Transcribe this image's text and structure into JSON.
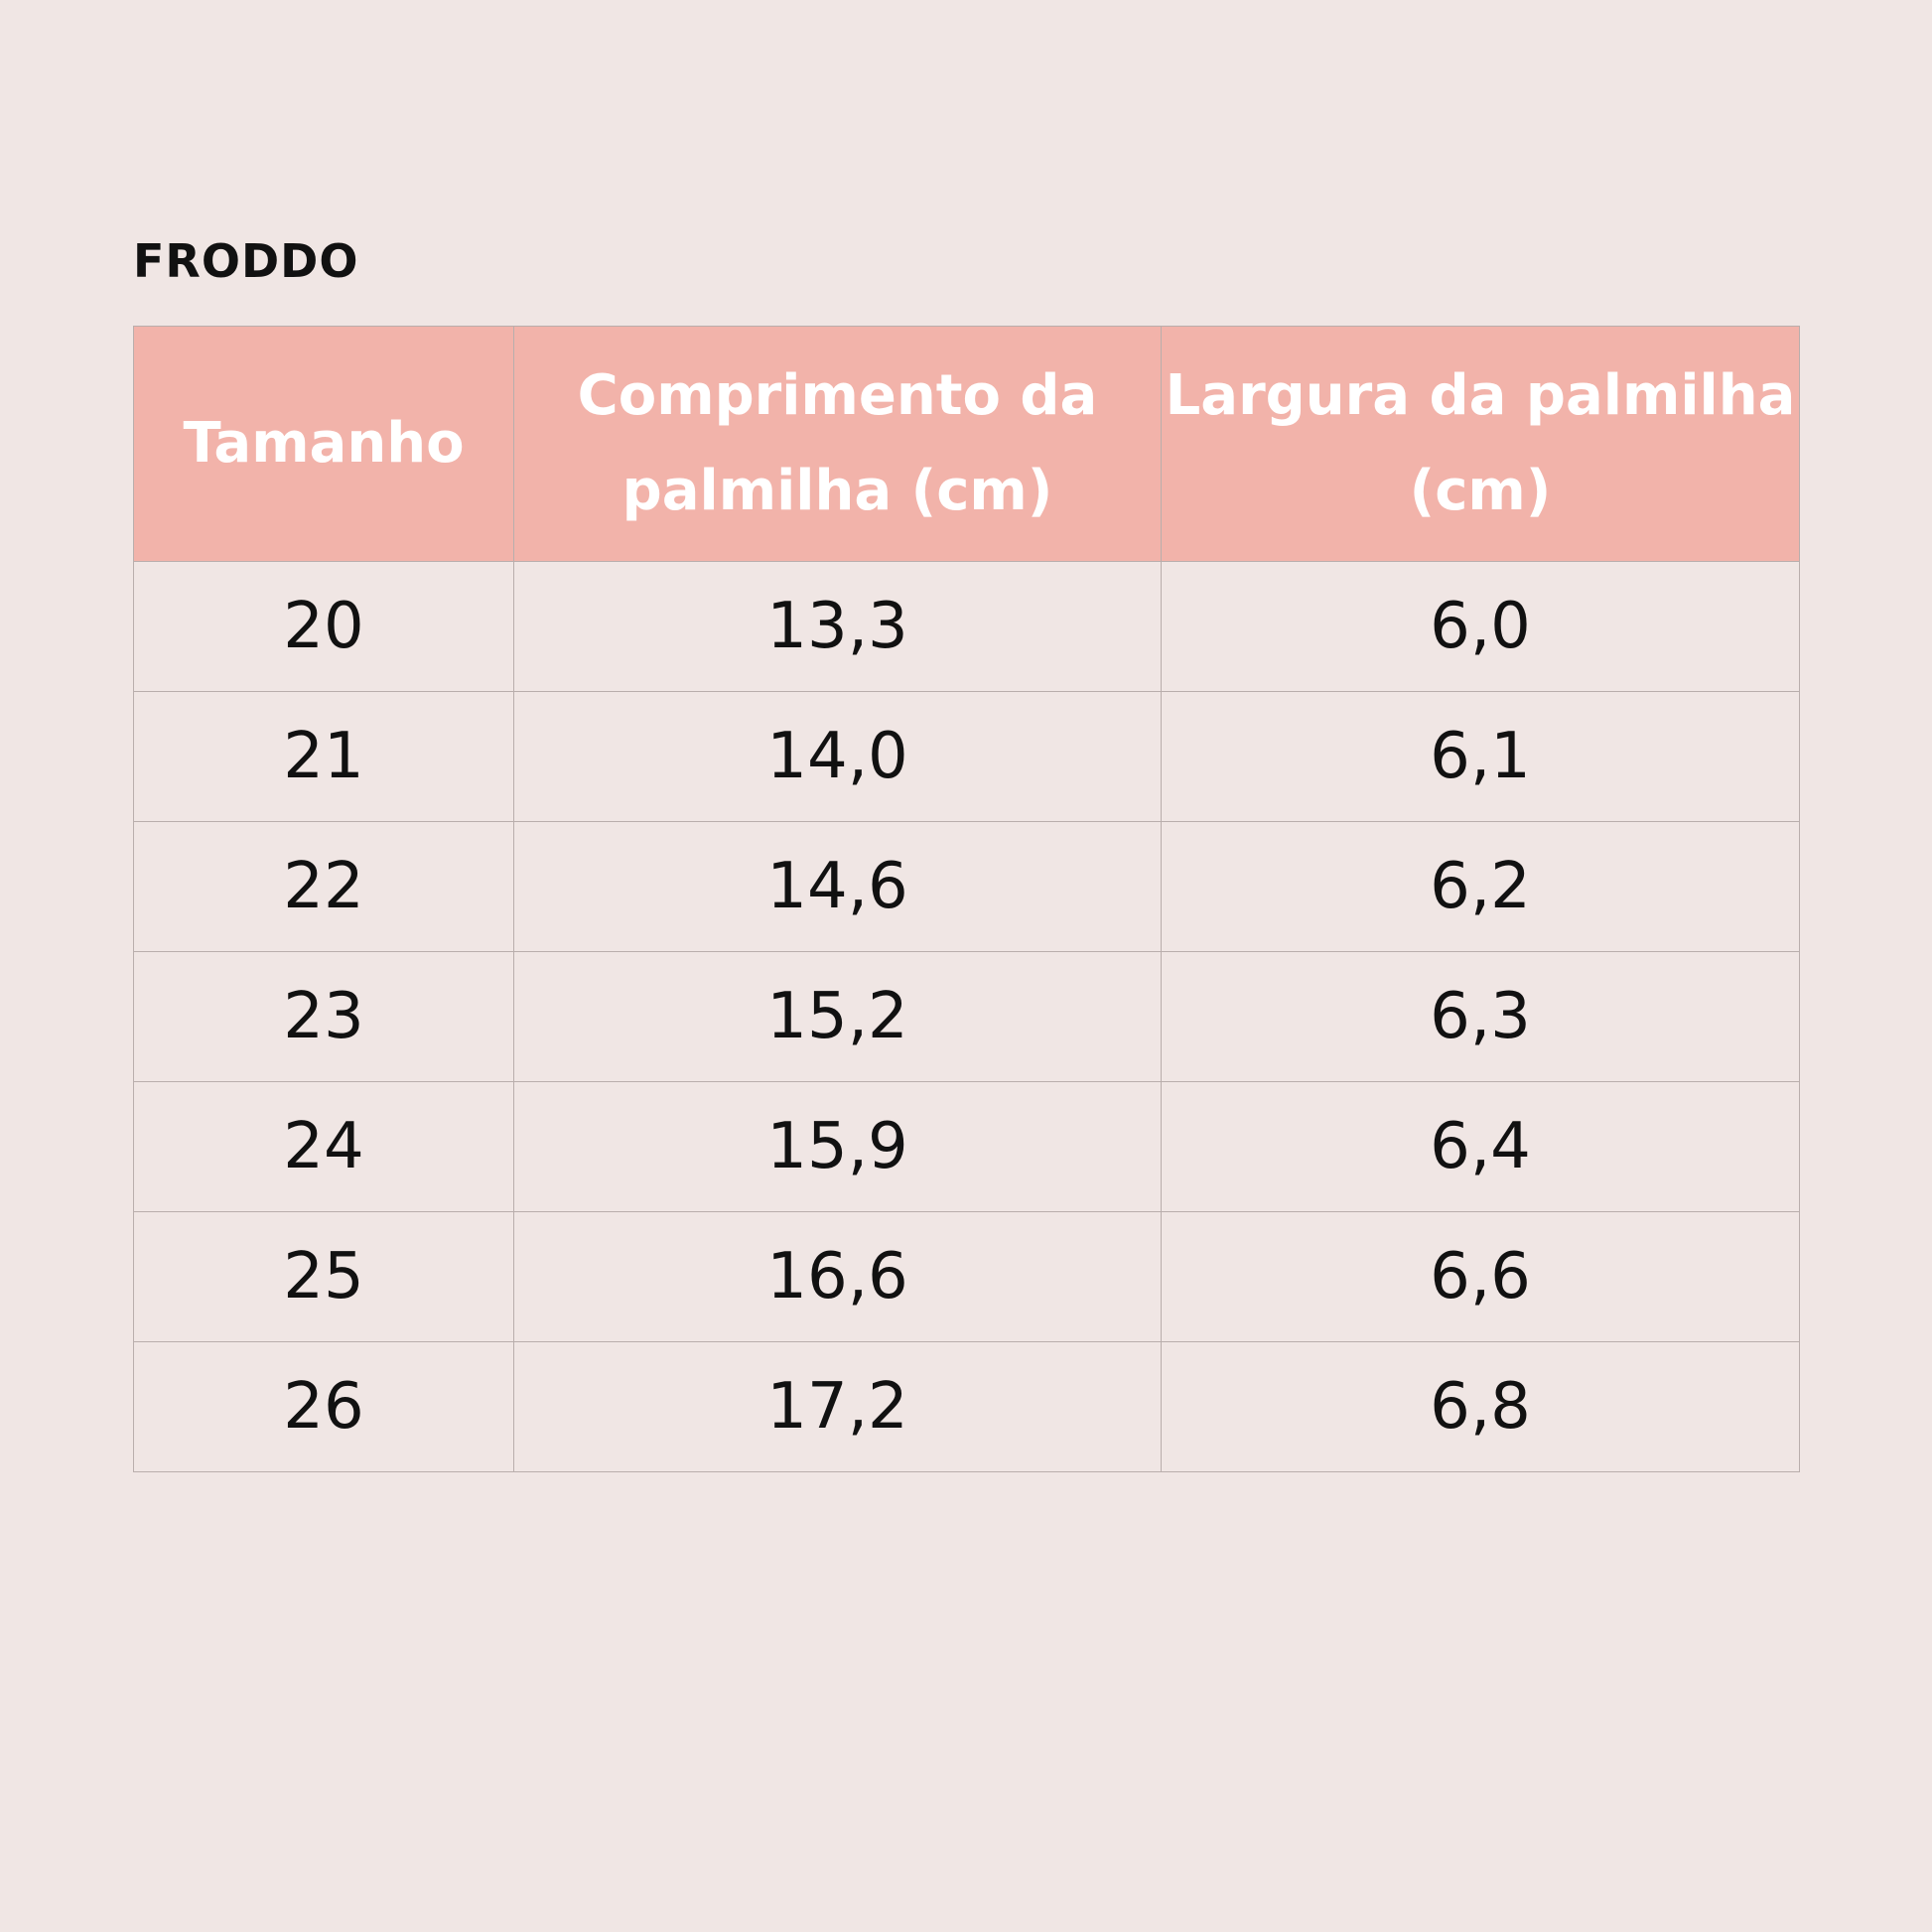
{
  "title": "FRODDO",
  "table": {
    "headers": [
      "Tamanho",
      "Comprimento da palmilha (cm)",
      "Largura da palmilha (cm)"
    ],
    "rows": [
      [
        "20",
        "13,3",
        "6,0"
      ],
      [
        "21",
        "14,0",
        "6,1"
      ],
      [
        "22",
        "14,6",
        "6,2"
      ],
      [
        "23",
        "15,2",
        "6,3"
      ],
      [
        "24",
        "15,9",
        "6,4"
      ],
      [
        "25",
        "16,6",
        "6,6"
      ],
      [
        "26",
        "17,2",
        "6,8"
      ]
    ]
  },
  "colors": {
    "background": "#f0e6e4",
    "header_fill": "#f2b3aa",
    "header_text": "#ffffff",
    "body_text": "#111111"
  }
}
